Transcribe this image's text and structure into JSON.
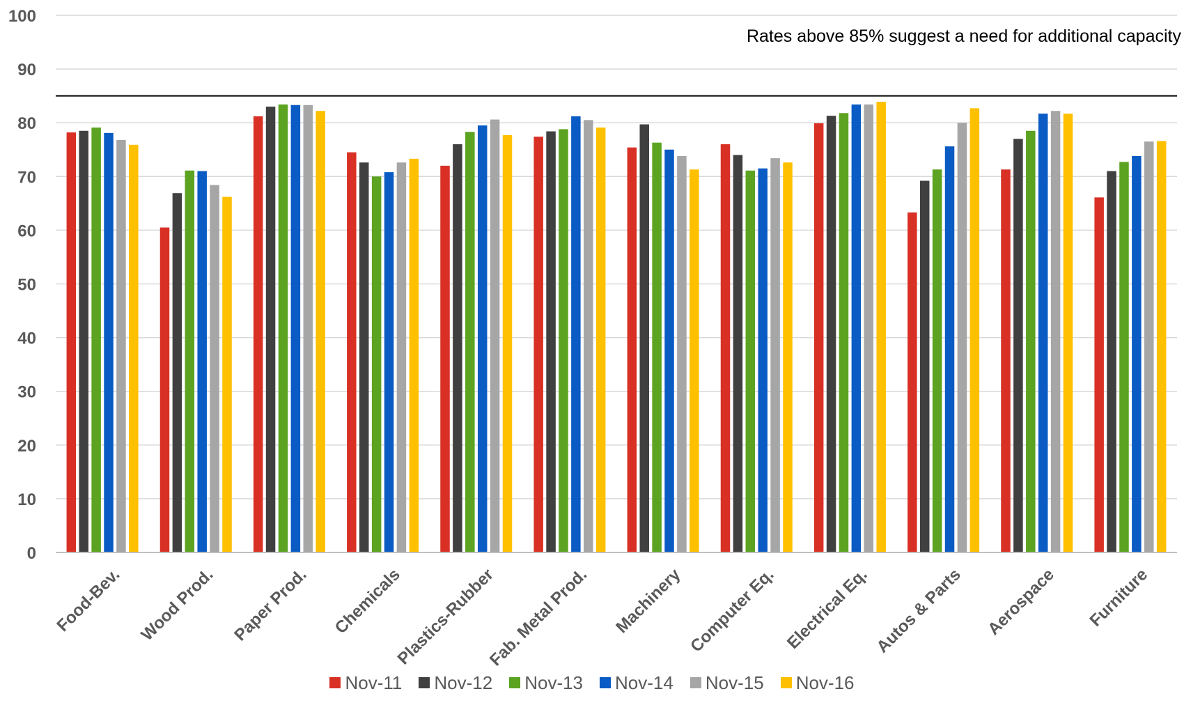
{
  "chart_data": {
    "type": "bar",
    "categories": [
      "Food-Bev.",
      "Wood Prod.",
      "Paper Prod.",
      "Chemicals",
      "Plastics-Rubber",
      "Fab. Metal Prod.",
      "Machinery",
      "Computer Eq.",
      "Electrical Eq.",
      "Autos & Parts",
      "Aerospace",
      "Furniture"
    ],
    "series": [
      {
        "name": "Nov-11",
        "color": "#d93025",
        "values": [
          78.2,
          60.5,
          81.2,
          74.5,
          72.0,
          77.4,
          75.4,
          76.0,
          79.9,
          63.3,
          71.3,
          66.1
        ]
      },
      {
        "name": "Nov-12",
        "color": "#404040",
        "values": [
          78.5,
          66.9,
          83.0,
          72.6,
          76.0,
          78.4,
          79.7,
          74.0,
          81.3,
          69.2,
          77.0,
          71.0
        ]
      },
      {
        "name": "Nov-13",
        "color": "#5ba320",
        "values": [
          79.1,
          71.1,
          83.4,
          70.0,
          78.3,
          78.8,
          76.3,
          71.1,
          81.8,
          71.3,
          78.5,
          72.7
        ]
      },
      {
        "name": "Nov-14",
        "color": "#0a5bc4",
        "values": [
          78.1,
          71.0,
          83.3,
          70.8,
          79.5,
          81.2,
          75.0,
          71.5,
          83.4,
          75.6,
          81.7,
          73.8
        ]
      },
      {
        "name": "Nov-15",
        "color": "#a6a6a6",
        "values": [
          76.8,
          68.4,
          83.3,
          72.6,
          80.6,
          80.5,
          73.8,
          73.4,
          83.4,
          80.0,
          82.2,
          76.5
        ]
      },
      {
        "name": "Nov-16",
        "color": "#ffc000",
        "values": [
          75.9,
          66.2,
          82.2,
          73.3,
          77.7,
          79.1,
          71.3,
          72.6,
          83.9,
          82.7,
          81.7,
          76.6
        ]
      }
    ],
    "yticks": [
      "0",
      "10",
      "20",
      "30",
      "40",
      "50",
      "60",
      "70",
      "80",
      "90",
      "100"
    ],
    "ylim": [
      0,
      100
    ],
    "reference_line": {
      "value": 85,
      "label": "Rates above 85% suggest a need for additional capacity"
    },
    "grid": true,
    "legend_position": "bottom"
  }
}
